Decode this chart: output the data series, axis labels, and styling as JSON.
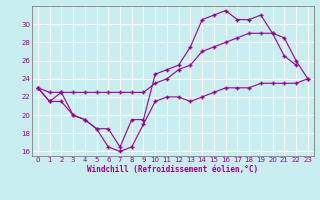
{
  "line1_x": [
    0,
    1,
    2,
    3,
    4,
    5,
    6,
    7,
    8,
    9,
    10,
    11,
    12,
    13,
    14,
    15,
    16,
    17,
    18,
    19,
    20,
    21,
    22,
    23
  ],
  "line1_y": [
    23.0,
    21.5,
    21.5,
    20.0,
    19.5,
    18.5,
    16.5,
    16.0,
    16.5,
    19.0,
    21.5,
    22.0,
    22.0,
    21.5,
    22.0,
    22.5,
    23.0,
    23.0,
    23.0,
    23.5,
    23.5,
    23.5,
    23.5,
    24.0
  ],
  "line2_x": [
    0,
    1,
    2,
    3,
    4,
    5,
    6,
    7,
    8,
    9,
    10,
    11,
    12,
    13,
    14,
    15,
    16,
    17,
    18,
    19,
    20,
    21,
    22,
    23
  ],
  "line2_y": [
    23.0,
    22.5,
    22.5,
    22.5,
    22.5,
    22.5,
    22.5,
    22.5,
    22.5,
    22.5,
    23.5,
    24.0,
    25.0,
    25.5,
    27.0,
    27.5,
    28.0,
    28.5,
    29.0,
    29.0,
    29.0,
    28.5,
    26.0,
    24.0
  ],
  "line3_x": [
    0,
    1,
    2,
    3,
    4,
    5,
    6,
    7,
    8,
    9,
    10,
    11,
    12,
    13,
    14,
    15,
    16,
    17,
    18,
    19,
    20,
    21,
    22
  ],
  "line3_y": [
    23.0,
    21.5,
    22.5,
    20.0,
    19.5,
    18.5,
    18.5,
    16.5,
    19.5,
    19.5,
    24.5,
    25.0,
    25.5,
    27.5,
    30.5,
    31.0,
    31.5,
    30.5,
    30.5,
    31.0,
    29.0,
    26.5,
    25.5
  ],
  "line_color": "#990099",
  "marker": "+",
  "bg_color": "#c8eef0",
  "grid_color": "#b0d8da",
  "spine_color": "#808080",
  "xlabel": "Windchill (Refroidissement éolien,°C)",
  "xlim": [
    -0.5,
    23.5
  ],
  "ylim": [
    15.5,
    32.0
  ],
  "yticks": [
    16,
    18,
    20,
    22,
    24,
    26,
    28,
    30
  ],
  "xticks": [
    0,
    1,
    2,
    3,
    4,
    5,
    6,
    7,
    8,
    9,
    10,
    11,
    12,
    13,
    14,
    15,
    16,
    17,
    18,
    19,
    20,
    21,
    22,
    23
  ],
  "label_fontsize": 5.5,
  "tick_fontsize": 5.0,
  "marker_size": 3.0,
  "line_width": 0.8
}
